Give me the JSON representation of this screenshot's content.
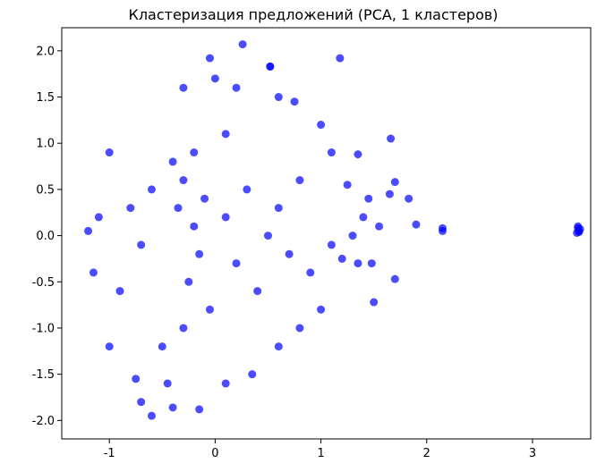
{
  "chart_data": {
    "type": "scatter",
    "title": "Кластеризация предложений (PCA, 1 кластеров)",
    "xlabel": "",
    "ylabel": "",
    "xlim": [
      -1.45,
      3.55
    ],
    "ylim": [
      -2.2,
      2.25
    ],
    "xticks": [
      -1,
      0,
      1,
      2,
      3
    ],
    "yticks": [
      -2.0,
      -1.5,
      -1.0,
      -0.5,
      0.0,
      0.5,
      1.0,
      1.5,
      2.0
    ],
    "xtick_labels": [
      "-1",
      "0",
      "1",
      "2",
      "3"
    ],
    "ytick_labels": [
      "-2.0",
      "-1.5",
      "-1.0",
      "-0.5",
      "0.0",
      "0.5",
      "1.0",
      "1.5",
      "2.0"
    ],
    "grid": false,
    "color": "#0000ff",
    "opacity": 0.7,
    "series": [
      {
        "points": [
          [
            -0.35,
            0.3
          ],
          [
            -0.2,
            0.1
          ],
          [
            -0.3,
            0.6
          ],
          [
            -0.15,
            -0.2
          ],
          [
            -0.25,
            -0.5
          ],
          [
            -0.1,
            0.4
          ],
          [
            -0.4,
            0.8
          ],
          [
            -0.05,
            -0.8
          ],
          [
            -0.3,
            -1.0
          ],
          [
            -0.2,
            0.9
          ],
          [
            0.1,
            0.2
          ],
          [
            0.2,
            -0.3
          ],
          [
            0.3,
            0.5
          ],
          [
            0.4,
            -0.6
          ],
          [
            0.1,
            1.1
          ],
          [
            -0.6,
            0.5
          ],
          [
            -0.7,
            -0.1
          ],
          [
            -0.8,
            0.3
          ],
          [
            -0.9,
            -0.6
          ],
          [
            -0.5,
            -1.2
          ],
          [
            0.5,
            0.0
          ],
          [
            0.6,
            0.3
          ],
          [
            0.7,
            -0.2
          ],
          [
            0.8,
            0.6
          ],
          [
            0.9,
            -0.4
          ],
          [
            -1.0,
            0.9
          ],
          [
            -1.1,
            0.2
          ],
          [
            -1.2,
            0.05
          ],
          [
            -1.15,
            -0.4
          ],
          [
            -1.0,
            -1.2
          ],
          [
            0.26,
            2.07
          ],
          [
            -0.05,
            1.92
          ],
          [
            1.18,
            1.92
          ],
          [
            0.52,
            1.83
          ],
          [
            0.52,
            1.83
          ],
          [
            -0.3,
            1.6
          ],
          [
            0.0,
            1.7
          ],
          [
            0.2,
            1.6
          ],
          [
            0.6,
            1.5
          ],
          [
            0.75,
            1.45
          ],
          [
            1.0,
            1.2
          ],
          [
            1.1,
            0.9
          ],
          [
            1.35,
            0.88
          ],
          [
            1.66,
            1.05
          ],
          [
            1.7,
            0.58
          ],
          [
            1.25,
            0.55
          ],
          [
            1.45,
            0.4
          ],
          [
            1.65,
            0.45
          ],
          [
            1.83,
            0.4
          ],
          [
            1.4,
            0.2
          ],
          [
            1.55,
            0.1
          ],
          [
            1.9,
            0.12
          ],
          [
            1.3,
            0.0
          ],
          [
            1.1,
            -0.1
          ],
          [
            1.2,
            -0.25
          ],
          [
            1.35,
            -0.3
          ],
          [
            1.48,
            -0.3
          ],
          [
            1.5,
            -0.72
          ],
          [
            1.7,
            -0.47
          ],
          [
            1.0,
            -0.8
          ],
          [
            0.8,
            -1.0
          ],
          [
            0.6,
            -1.2
          ],
          [
            0.35,
            -1.5
          ],
          [
            0.1,
            -1.6
          ],
          [
            -0.15,
            -1.88
          ],
          [
            -0.4,
            -1.86
          ],
          [
            -0.6,
            -1.95
          ],
          [
            -0.7,
            -1.8
          ],
          [
            -0.75,
            -1.55
          ],
          [
            -0.45,
            -1.6
          ],
          [
            2.15,
            0.08
          ],
          [
            2.15,
            0.05
          ],
          [
            3.43,
            0.08
          ],
          [
            3.44,
            0.05
          ],
          [
            3.42,
            0.03
          ],
          [
            3.45,
            0.07
          ],
          [
            3.43,
            0.1
          ],
          [
            3.44,
            0.04
          ]
        ]
      }
    ]
  }
}
